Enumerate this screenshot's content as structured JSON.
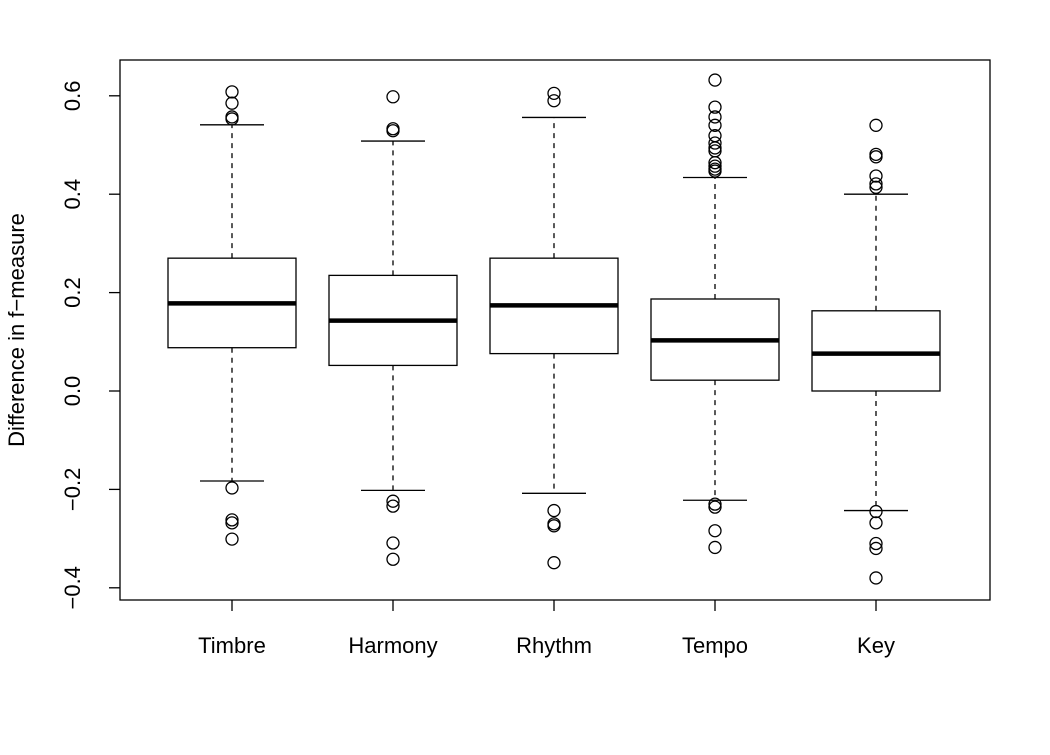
{
  "chart_data": {
    "type": "boxplot",
    "title": "",
    "xlabel": "",
    "ylabel": "Difference in f−measure",
    "ylim": [
      -0.42,
      0.67
    ],
    "yticks": [
      -0.4,
      -0.2,
      0.0,
      0.2,
      0.4,
      0.6
    ],
    "ytick_labels": [
      "−0.4",
      "−0.2",
      "0.0",
      "0.2",
      "0.4",
      "0.6"
    ],
    "grid": false,
    "categories": [
      "Timbre",
      "Harmony",
      "Rhythm",
      "Tempo",
      "Key"
    ],
    "boxes": [
      {
        "name": "Timbre",
        "whisker_low": -0.183,
        "q1": 0.088,
        "median": 0.178,
        "q3": 0.27,
        "whisker_high": 0.541,
        "outliers": [
          0.608,
          0.585,
          0.557,
          0.553,
          -0.197,
          -0.262,
          -0.268,
          -0.301
        ]
      },
      {
        "name": "Harmony",
        "whisker_low": -0.202,
        "q1": 0.052,
        "median": 0.143,
        "q3": 0.235,
        "whisker_high": 0.508,
        "outliers": [
          0.598,
          0.533,
          0.529,
          -0.224,
          -0.234,
          -0.309,
          -0.342
        ]
      },
      {
        "name": "Rhythm",
        "whisker_low": -0.208,
        "q1": 0.076,
        "median": 0.174,
        "q3": 0.27,
        "whisker_high": 0.556,
        "outliers": [
          0.605,
          0.59,
          -0.243,
          -0.27,
          -0.274,
          -0.349
        ]
      },
      {
        "name": "Tempo",
        "whisker_low": -0.222,
        "q1": 0.022,
        "median": 0.103,
        "q3": 0.187,
        "whisker_high": 0.434,
        "outliers": [
          0.632,
          0.577,
          0.557,
          0.54,
          0.519,
          0.504,
          0.494,
          0.488,
          0.464,
          0.457,
          0.451,
          0.447,
          -0.23,
          -0.236,
          -0.284,
          -0.318
        ]
      },
      {
        "name": "Key",
        "whisker_low": -0.243,
        "q1": 0.0,
        "median": 0.076,
        "q3": 0.163,
        "whisker_high": 0.4,
        "outliers": [
          0.54,
          0.481,
          0.476,
          0.437,
          0.421,
          0.414,
          -0.245,
          -0.268,
          -0.31,
          -0.32,
          -0.38
        ]
      }
    ]
  }
}
